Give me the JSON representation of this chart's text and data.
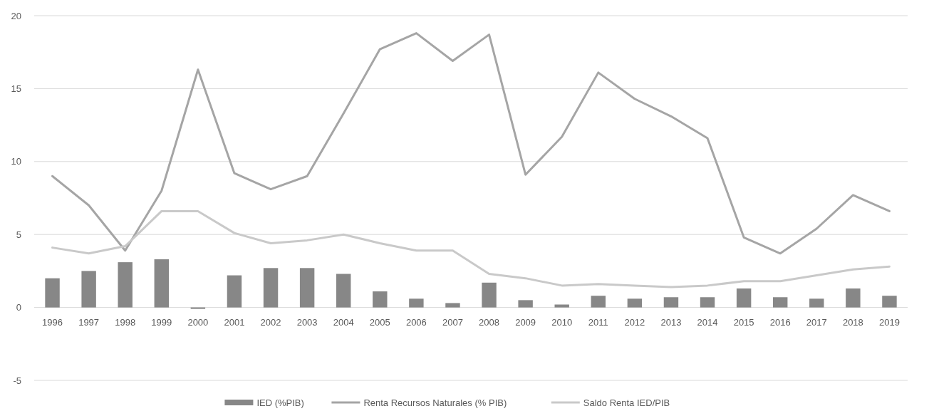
{
  "chart_data": {
    "type": "bar",
    "categories": [
      "1996",
      "1997",
      "1998",
      "1999",
      "2000",
      "2001",
      "2002",
      "2003",
      "2004",
      "2005",
      "2006",
      "2007",
      "2008",
      "2009",
      "2010",
      "2011",
      "2012",
      "2013",
      "2014",
      "2015",
      "2016",
      "2017",
      "2018",
      "2019"
    ],
    "series": [
      {
        "name": "IED (%PIB)",
        "color": "#878787",
        "values": [
          2.0,
          2.5,
          3.1,
          3.3,
          -0.1,
          2.2,
          2.7,
          2.7,
          2.3,
          1.1,
          0.6,
          0.3,
          1.7,
          0.5,
          0.2,
          0.8,
          0.6,
          0.7,
          0.7,
          1.3,
          0.7,
          0.6,
          1.3,
          0.8
        ]
      },
      {
        "name": "Renta Recursos Naturales (% PIB)",
        "type": "line",
        "color": "#a5a5a5",
        "values": [
          9.0,
          7.0,
          3.9,
          8.0,
          16.3,
          9.2,
          8.1,
          9.0,
          13.3,
          17.7,
          18.8,
          16.9,
          18.7,
          9.1,
          11.7,
          16.1,
          14.3,
          13.1,
          11.6,
          4.8,
          3.7,
          5.4,
          7.7,
          6.6
        ]
      },
      {
        "name": "Saldo Renta IED/PIB",
        "type": "line",
        "color": "#c9c9c9",
        "values": [
          4.1,
          3.7,
          4.2,
          6.6,
          6.6,
          5.1,
          4.4,
          4.6,
          5.0,
          4.4,
          3.9,
          3.9,
          2.3,
          2.0,
          1.5,
          1.6,
          1.5,
          1.4,
          1.5,
          1.8,
          1.8,
          2.2,
          2.6,
          2.8
        ]
      }
    ],
    "ylim": [
      -5,
      20
    ],
    "yticks": [
      -5,
      0,
      5,
      10,
      15,
      20
    ],
    "grid": "y",
    "legend": "bottom",
    "marker": "none",
    "line_style": "solid"
  }
}
